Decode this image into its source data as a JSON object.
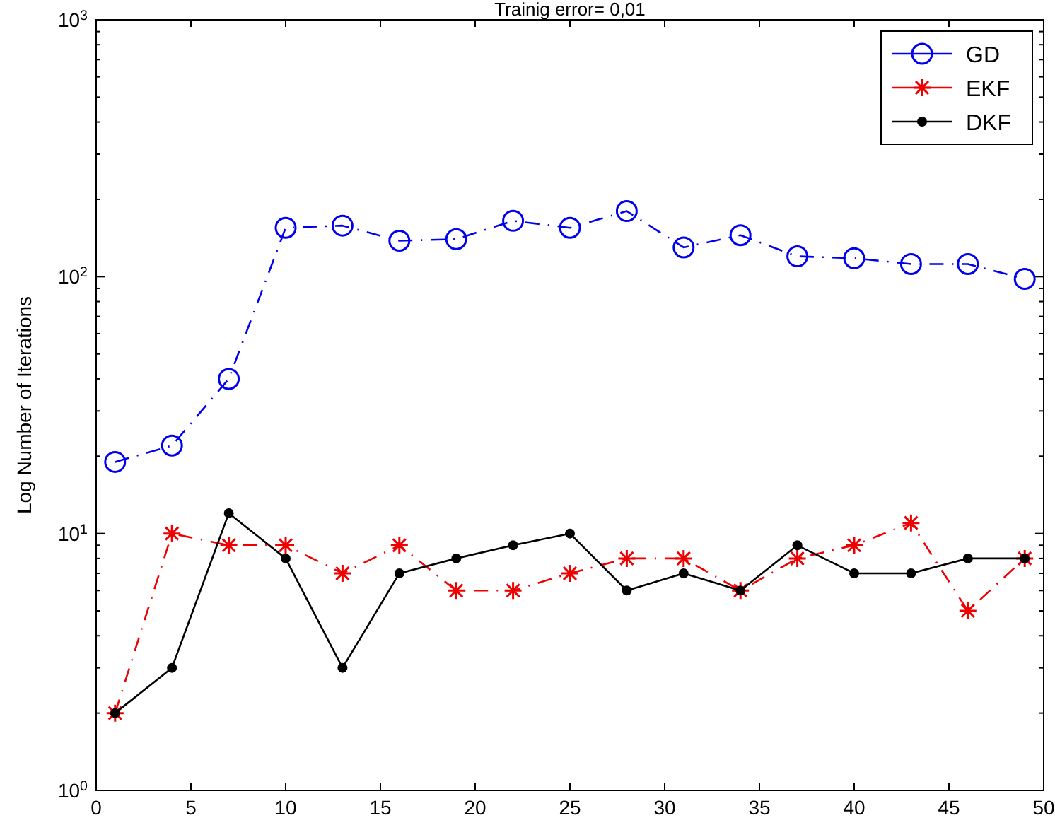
{
  "chart_data": {
    "type": "line",
    "title": "Trainig error= 0,01",
    "ylabel": "Log Number of Iterations",
    "log": "y",
    "grid": false,
    "legend": "top right",
    "x": [
      1,
      4,
      7,
      10,
      13,
      16,
      19,
      22,
      25,
      28,
      31,
      34,
      37,
      40,
      43,
      46,
      49
    ],
    "xlim": [
      0,
      50
    ],
    "xticks": [
      0,
      5,
      10,
      15,
      20,
      25,
      30,
      35,
      40,
      45,
      50
    ],
    "ylim": [
      1,
      1000
    ],
    "yticks": [
      {
        "value": 1,
        "label": "10$^{0}$"
      },
      {
        "value": 10,
        "label": "10$^{1}$"
      },
      {
        "value": 100,
        "label": "10$^{2}$"
      },
      {
        "value": 1000,
        "label": "10$^{3}$"
      }
    ],
    "series": [
      {
        "name": "GD",
        "color": "#0000ee",
        "marker": "circle",
        "line_style": "dashed",
        "values": [
          19,
          22,
          40,
          155,
          158,
          138,
          140,
          165,
          155,
          180,
          130,
          145,
          120,
          118,
          112,
          112,
          98
        ]
      },
      {
        "name": "EKF",
        "color": "#ee0000",
        "marker": "cross",
        "line_style": "dashed",
        "values": [
          2,
          10,
          9,
          9,
          7,
          9,
          6,
          6,
          7,
          8,
          8,
          6,
          8,
          9,
          11,
          5,
          8
        ]
      },
      {
        "name": "DKF",
        "color": "#000000",
        "marker": "circle",
        "line_style": "solid",
        "values": [
          2,
          3,
          12,
          8,
          3,
          7,
          8,
          9,
          10,
          6,
          7,
          6,
          9,
          7,
          7,
          8,
          8
        ]
      }
    ]
  }
}
